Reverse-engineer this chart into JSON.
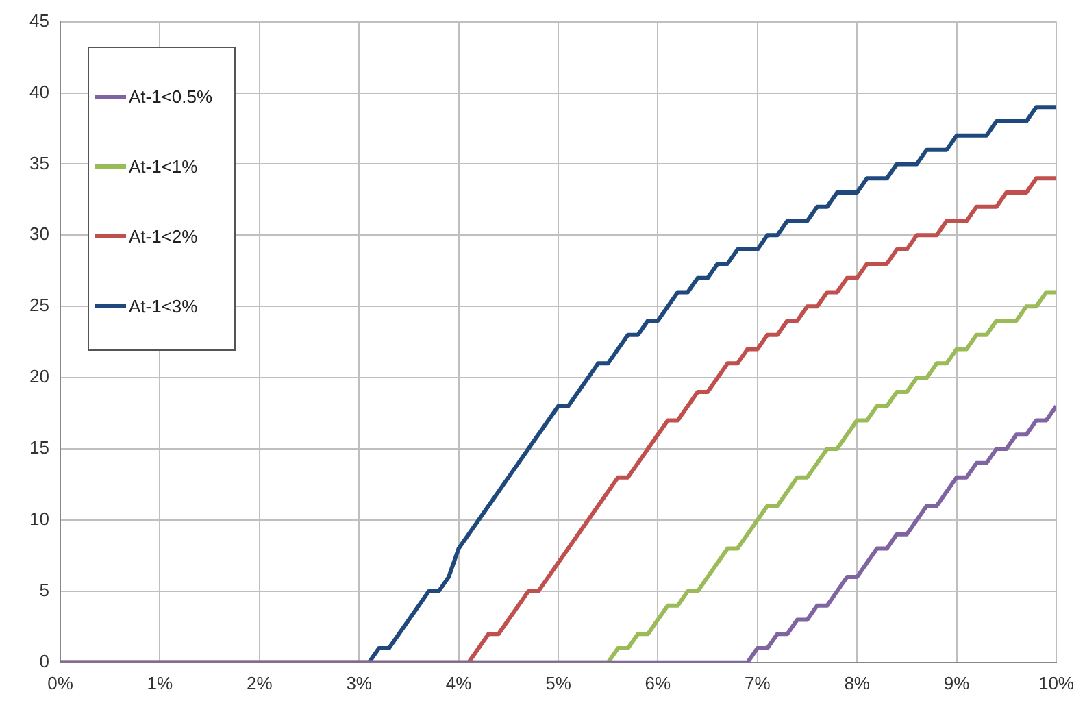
{
  "chart_data": {
    "type": "line",
    "xlim": [
      0,
      10
    ],
    "ylim": [
      0,
      45
    ],
    "xticks": [
      {
        "value": 0,
        "label": "0%"
      },
      {
        "value": 1,
        "label": "1%"
      },
      {
        "value": 2,
        "label": "2%"
      },
      {
        "value": 3,
        "label": "3%"
      },
      {
        "value": 4,
        "label": "4%"
      },
      {
        "value": 5,
        "label": "5%"
      },
      {
        "value": 6,
        "label": "6%"
      },
      {
        "value": 7,
        "label": "7%"
      },
      {
        "value": 8,
        "label": "8%"
      },
      {
        "value": 9,
        "label": "9%"
      },
      {
        "value": 10,
        "label": "10%"
      }
    ],
    "yticks": [
      0,
      5,
      10,
      15,
      20,
      25,
      30,
      35,
      40,
      45
    ],
    "grid": true,
    "legend": "top left",
    "marker": "none",
    "line_style": "solid",
    "series": [
      {
        "name": "At-1<0.5%",
        "color": "#8064a2",
        "x": [
          0,
          6.9,
          7.0,
          7.1,
          7.2,
          7.3,
          7.4,
          7.5,
          7.6,
          7.7,
          7.8,
          7.9,
          8.0,
          8.1,
          8.2,
          8.3,
          8.4,
          8.5,
          8.6,
          8.7,
          8.8,
          8.9,
          9.0,
          9.1,
          9.2,
          9.3,
          9.4,
          9.5,
          9.6,
          9.7,
          9.8,
          9.9,
          10.0
        ],
        "values": [
          0,
          0,
          1,
          1,
          2,
          2,
          3,
          3,
          4,
          4,
          5,
          6,
          6,
          7,
          8,
          8,
          9,
          9,
          10,
          11,
          11,
          12,
          13,
          13,
          14,
          14,
          15,
          15,
          16,
          16,
          17,
          17,
          18
        ]
      },
      {
        "name": "At-1<1%",
        "color": "#9bbb59",
        "x": [
          0,
          5.5,
          5.6,
          5.7,
          5.8,
          5.9,
          6.0,
          6.1,
          6.2,
          6.3,
          6.4,
          6.5,
          6.6,
          6.7,
          6.8,
          6.9,
          7.0,
          7.1,
          7.2,
          7.3,
          7.4,
          7.5,
          7.6,
          7.7,
          7.8,
          7.9,
          8.0,
          8.1,
          8.2,
          8.3,
          8.4,
          8.5,
          8.6,
          8.7,
          8.8,
          8.9,
          9.0,
          9.1,
          9.2,
          9.3,
          9.4,
          9.5,
          9.6,
          9.7,
          9.8,
          9.9,
          10.0
        ],
        "values": [
          0,
          0,
          1,
          1,
          2,
          2,
          3,
          4,
          4,
          5,
          5,
          6,
          7,
          8,
          8,
          9,
          10,
          11,
          11,
          12,
          13,
          13,
          14,
          15,
          15,
          16,
          17,
          17,
          18,
          18,
          19,
          19,
          20,
          20,
          21,
          21,
          22,
          22,
          23,
          23,
          24,
          24,
          24,
          25,
          25,
          26,
          26
        ]
      },
      {
        "name": "At-1<2%",
        "color": "#c0504d",
        "x": [
          0,
          4.1,
          4.2,
          4.3,
          4.4,
          4.5,
          4.6,
          4.7,
          4.8,
          4.9,
          5.0,
          5.1,
          5.2,
          5.3,
          5.4,
          5.5,
          5.6,
          5.7,
          5.8,
          5.9,
          6.0,
          6.1,
          6.2,
          6.3,
          6.4,
          6.5,
          6.6,
          6.7,
          6.8,
          6.9,
          7.0,
          7.1,
          7.2,
          7.3,
          7.4,
          7.5,
          7.6,
          7.7,
          7.8,
          7.9,
          8.0,
          8.1,
          8.2,
          8.3,
          8.4,
          8.5,
          8.6,
          8.7,
          8.8,
          8.9,
          9.0,
          9.1,
          9.2,
          9.3,
          9.4,
          9.5,
          9.6,
          9.7,
          9.8,
          9.9,
          10.0
        ],
        "values": [
          0,
          0,
          1,
          2,
          2,
          3,
          4,
          5,
          5,
          6,
          7,
          8,
          9,
          10,
          11,
          12,
          13,
          13,
          14,
          15,
          16,
          17,
          17,
          18,
          19,
          19,
          20,
          21,
          21,
          22,
          22,
          23,
          23,
          24,
          24,
          25,
          25,
          26,
          26,
          27,
          27,
          28,
          28,
          28,
          29,
          29,
          30,
          30,
          30,
          31,
          31,
          31,
          32,
          32,
          32,
          33,
          33,
          33,
          34,
          34,
          34
        ]
      },
      {
        "name": "At-1<3%",
        "color": "#1f497d",
        "x": [
          0,
          3.1,
          3.2,
          3.3,
          3.4,
          3.5,
          3.6,
          3.7,
          3.8,
          3.9,
          4.0,
          4.1,
          4.2,
          4.3,
          4.4,
          4.5,
          4.6,
          4.7,
          4.8,
          4.9,
          5.0,
          5.1,
          5.2,
          5.3,
          5.4,
          5.5,
          5.6,
          5.7,
          5.8,
          5.9,
          6.0,
          6.1,
          6.2,
          6.3,
          6.4,
          6.5,
          6.6,
          6.7,
          6.8,
          6.9,
          7.0,
          7.1,
          7.2,
          7.3,
          7.4,
          7.5,
          7.6,
          7.7,
          7.8,
          7.9,
          8.0,
          8.1,
          8.2,
          8.3,
          8.4,
          8.5,
          8.6,
          8.7,
          8.8,
          8.9,
          9.0,
          9.1,
          9.2,
          9.3,
          9.4,
          9.5,
          9.6,
          9.7,
          9.8,
          9.9,
          10.0
        ],
        "values": [
          0,
          0,
          1,
          1,
          2,
          3,
          4,
          5,
          5,
          6,
          8,
          9,
          10,
          11,
          12,
          13,
          14,
          15,
          16,
          17,
          18,
          18,
          19,
          20,
          21,
          21,
          22,
          23,
          23,
          24,
          24,
          25,
          26,
          26,
          27,
          27,
          28,
          28,
          29,
          29,
          29,
          30,
          30,
          31,
          31,
          31,
          32,
          32,
          33,
          33,
          33,
          34,
          34,
          34,
          35,
          35,
          35,
          36,
          36,
          36,
          37,
          37,
          37,
          37,
          38,
          38,
          38,
          38,
          39,
          39,
          39
        ]
      }
    ]
  }
}
